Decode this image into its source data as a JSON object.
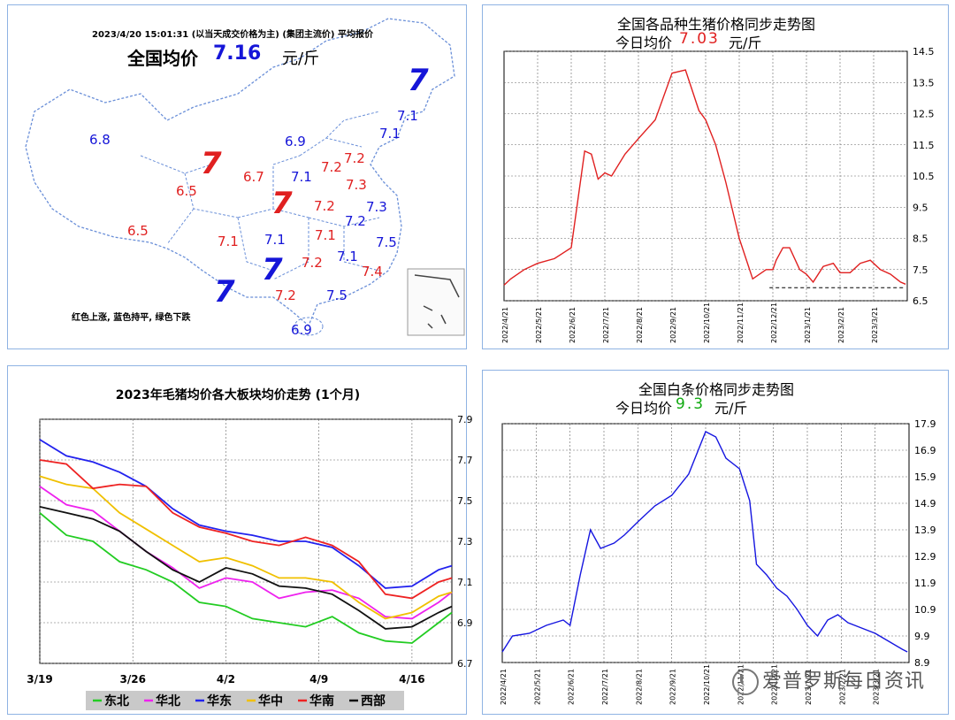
{
  "map": {
    "header": "2023/4/20  15:01:31  (以当天成交价格为主)   (集团主流价) 平均报价",
    "avg_label": "全国均价",
    "avg_value": "7.16",
    "unit": "元/斤",
    "legend_note": "红色上涨, 蓝色持平, 绿色下跌",
    "colors": {
      "rise": "#e02020",
      "flat": "#1515d8"
    },
    "prices": [
      {
        "v": "7",
        "c": "flat",
        "big": true
      },
      {
        "v": "7.1",
        "c": "flat"
      },
      {
        "v": "7.1",
        "c": "flat"
      },
      {
        "v": "6.8",
        "c": "flat"
      },
      {
        "v": "6.9",
        "c": "flat"
      },
      {
        "v": "7",
        "c": "rise",
        "big": true
      },
      {
        "v": "6.7",
        "c": "rise"
      },
      {
        "v": "7.1",
        "c": "flat"
      },
      {
        "v": "7.2",
        "c": "rise"
      },
      {
        "v": "7.2",
        "c": "rise"
      },
      {
        "v": "6.5",
        "c": "rise"
      },
      {
        "v": "7.3",
        "c": "rise"
      },
      {
        "v": "7",
        "c": "rise",
        "big": true
      },
      {
        "v": "7.2",
        "c": "rise"
      },
      {
        "v": "7.3",
        "c": "flat"
      },
      {
        "v": "7.2",
        "c": "flat"
      },
      {
        "v": "6.5",
        "c": "rise"
      },
      {
        "v": "7.1",
        "c": "rise"
      },
      {
        "v": "7.1",
        "c": "flat"
      },
      {
        "v": "7.1",
        "c": "rise"
      },
      {
        "v": "7.5",
        "c": "flat"
      },
      {
        "v": "7",
        "c": "flat",
        "big": true
      },
      {
        "v": "7.2",
        "c": "rise"
      },
      {
        "v": "7.1",
        "c": "flat"
      },
      {
        "v": "7.4",
        "c": "rise"
      },
      {
        "v": "7",
        "c": "flat",
        "big": true
      },
      {
        "v": "7.2",
        "c": "rise"
      },
      {
        "v": "7.5",
        "c": "flat"
      },
      {
        "v": "6.9",
        "c": "flat"
      }
    ]
  },
  "chart_data": [
    {
      "type": "line",
      "title": "全国各品种生猪价格同步走势图",
      "subtitle_label": "今日均价",
      "subtitle_value": "7.03",
      "subtitle_unit": "元/斤",
      "value_color": "#e02020",
      "line_color": "#e02020",
      "ylim": [
        6.5,
        14.5
      ],
      "yticks": [
        "14.5",
        "13.5",
        "12.5",
        "11.5",
        "10.5",
        "9.5",
        "8.5",
        "7.5",
        "6.5"
      ],
      "xticks": [
        "2022/4/21",
        "2022/5/21",
        "2022/6/21",
        "2022/7/21",
        "2022/8/21",
        "2022/9/21",
        "2022/10/21",
        "2022/11/21",
        "2022/12/21",
        "2023/1/21",
        "2023/2/21",
        "2023/3/21"
      ],
      "x": [
        0,
        0.2,
        0.6,
        1,
        1.5,
        2,
        2.4,
        2.6,
        2.8,
        3,
        3.2,
        3.6,
        4,
        4.5,
        5,
        5.4,
        5.8,
        6,
        6.3,
        6.6,
        7,
        7.4,
        7.8,
        8.0,
        8.1,
        8.3,
        8.5,
        8.8,
        9,
        9.2,
        9.5,
        9.8,
        10,
        10.3,
        10.6,
        10.9,
        11.2,
        11.5,
        11.8,
        11.95
      ],
      "values": [
        7.0,
        7.2,
        7.5,
        7.7,
        7.85,
        8.2,
        11.3,
        11.2,
        10.4,
        10.6,
        10.5,
        11.2,
        11.7,
        12.3,
        13.8,
        13.9,
        12.6,
        12.3,
        11.5,
        10.3,
        8.5,
        7.2,
        7.5,
        7.5,
        7.8,
        8.2,
        8.2,
        7.5,
        7.35,
        7.1,
        7.6,
        7.7,
        7.4,
        7.4,
        7.7,
        7.8,
        7.5,
        7.35,
        7.1,
        7.03
      ],
      "baseline": 6.92
    },
    {
      "type": "line",
      "title": "2023年毛猪均价各大板块均价走势 (1个月)",
      "ylim": [
        6.7,
        7.9
      ],
      "yticks": [
        "7.9",
        "7.7",
        "7.5",
        "7.3",
        "7.1",
        "6.9",
        "6.7"
      ],
      "xticks": [
        "3/19",
        "3/26",
        "4/2",
        "4/9",
        "4/16"
      ],
      "xlim": [
        0,
        31
      ],
      "x": [
        0,
        2,
        4,
        6,
        8,
        10,
        12,
        14,
        16,
        18,
        20,
        22,
        24,
        26,
        28,
        30,
        31
      ],
      "series": [
        {
          "name": "东北",
          "color": "#22cc22",
          "values": [
            7.44,
            7.33,
            7.3,
            7.2,
            7.16,
            7.1,
            7.0,
            6.98,
            6.92,
            6.9,
            6.88,
            6.93,
            6.85,
            6.81,
            6.8,
            6.9,
            6.95
          ]
        },
        {
          "name": "华北",
          "color": "#ee22ee",
          "values": [
            7.57,
            7.48,
            7.45,
            7.35,
            7.25,
            7.17,
            7.07,
            7.12,
            7.1,
            7.02,
            7.05,
            7.06,
            7.02,
            6.93,
            6.92,
            7.0,
            7.05
          ]
        },
        {
          "name": "华东",
          "color": "#2222ee",
          "values": [
            7.8,
            7.72,
            7.69,
            7.64,
            7.57,
            7.46,
            7.38,
            7.35,
            7.33,
            7.3,
            7.3,
            7.27,
            7.18,
            7.07,
            7.08,
            7.16,
            7.18
          ]
        },
        {
          "name": "华中",
          "color": "#f0c000",
          "values": [
            7.62,
            7.58,
            7.56,
            7.44,
            7.36,
            7.28,
            7.2,
            7.22,
            7.18,
            7.12,
            7.12,
            7.1,
            7.0,
            6.92,
            6.95,
            7.03,
            7.05
          ]
        },
        {
          "name": "华南",
          "color": "#ee2222",
          "values": [
            7.7,
            7.68,
            7.56,
            7.58,
            7.57,
            7.44,
            7.37,
            7.34,
            7.3,
            7.28,
            7.32,
            7.28,
            7.2,
            7.04,
            7.02,
            7.1,
            7.12
          ]
        },
        {
          "name": "西部",
          "color": "#111111",
          "values": [
            7.47,
            7.44,
            7.41,
            7.35,
            7.25,
            7.16,
            7.1,
            7.17,
            7.14,
            7.08,
            7.07,
            7.04,
            6.96,
            6.87,
            6.88,
            6.95,
            6.98
          ]
        }
      ]
    },
    {
      "type": "line",
      "title": "全国白条价格同步走势图",
      "subtitle_label": "今日均价",
      "subtitle_value": "9.3",
      "subtitle_unit": "元/斤",
      "value_color": "#11aa11",
      "line_color": "#1515e0",
      "ylim": [
        8.9,
        17.9
      ],
      "yticks": [
        "17.9",
        "16.9",
        "15.9",
        "14.9",
        "13.9",
        "12.9",
        "11.9",
        "10.9",
        "9.9",
        "8.9"
      ],
      "xticks": [
        "2022/4/21",
        "2022/5/21",
        "2022/6/21",
        "2022/7/21",
        "2022/8/21",
        "2022/9/21",
        "2022/10/21",
        "2022/11/21",
        "2022/12/21",
        "2023/1/21",
        "2023/2/21",
        "2023/3/21"
      ],
      "x": [
        0,
        0.3,
        0.8,
        1.3,
        1.8,
        2.0,
        2.3,
        2.6,
        2.9,
        3.1,
        3.3,
        3.6,
        4,
        4.5,
        5,
        5.5,
        6,
        6.3,
        6.6,
        7,
        7.3,
        7.5,
        7.8,
        8.1,
        8.4,
        8.7,
        9.0,
        9.3,
        9.6,
        9.9,
        10.2,
        10.6,
        11,
        11.4,
        11.8,
        11.95
      ],
      "values": [
        9.3,
        9.9,
        10.0,
        10.3,
        10.5,
        10.3,
        12.2,
        13.9,
        13.2,
        13.3,
        13.4,
        13.7,
        14.2,
        14.8,
        15.2,
        16.0,
        17.6,
        17.4,
        16.6,
        16.2,
        15.0,
        12.6,
        12.2,
        11.7,
        11.4,
        10.9,
        10.3,
        9.9,
        10.5,
        10.7,
        10.4,
        10.2,
        10.0,
        9.7,
        9.4,
        9.3
      ]
    }
  ],
  "region_legend_title": "",
  "watermark": "爱普罗斯每日资讯"
}
